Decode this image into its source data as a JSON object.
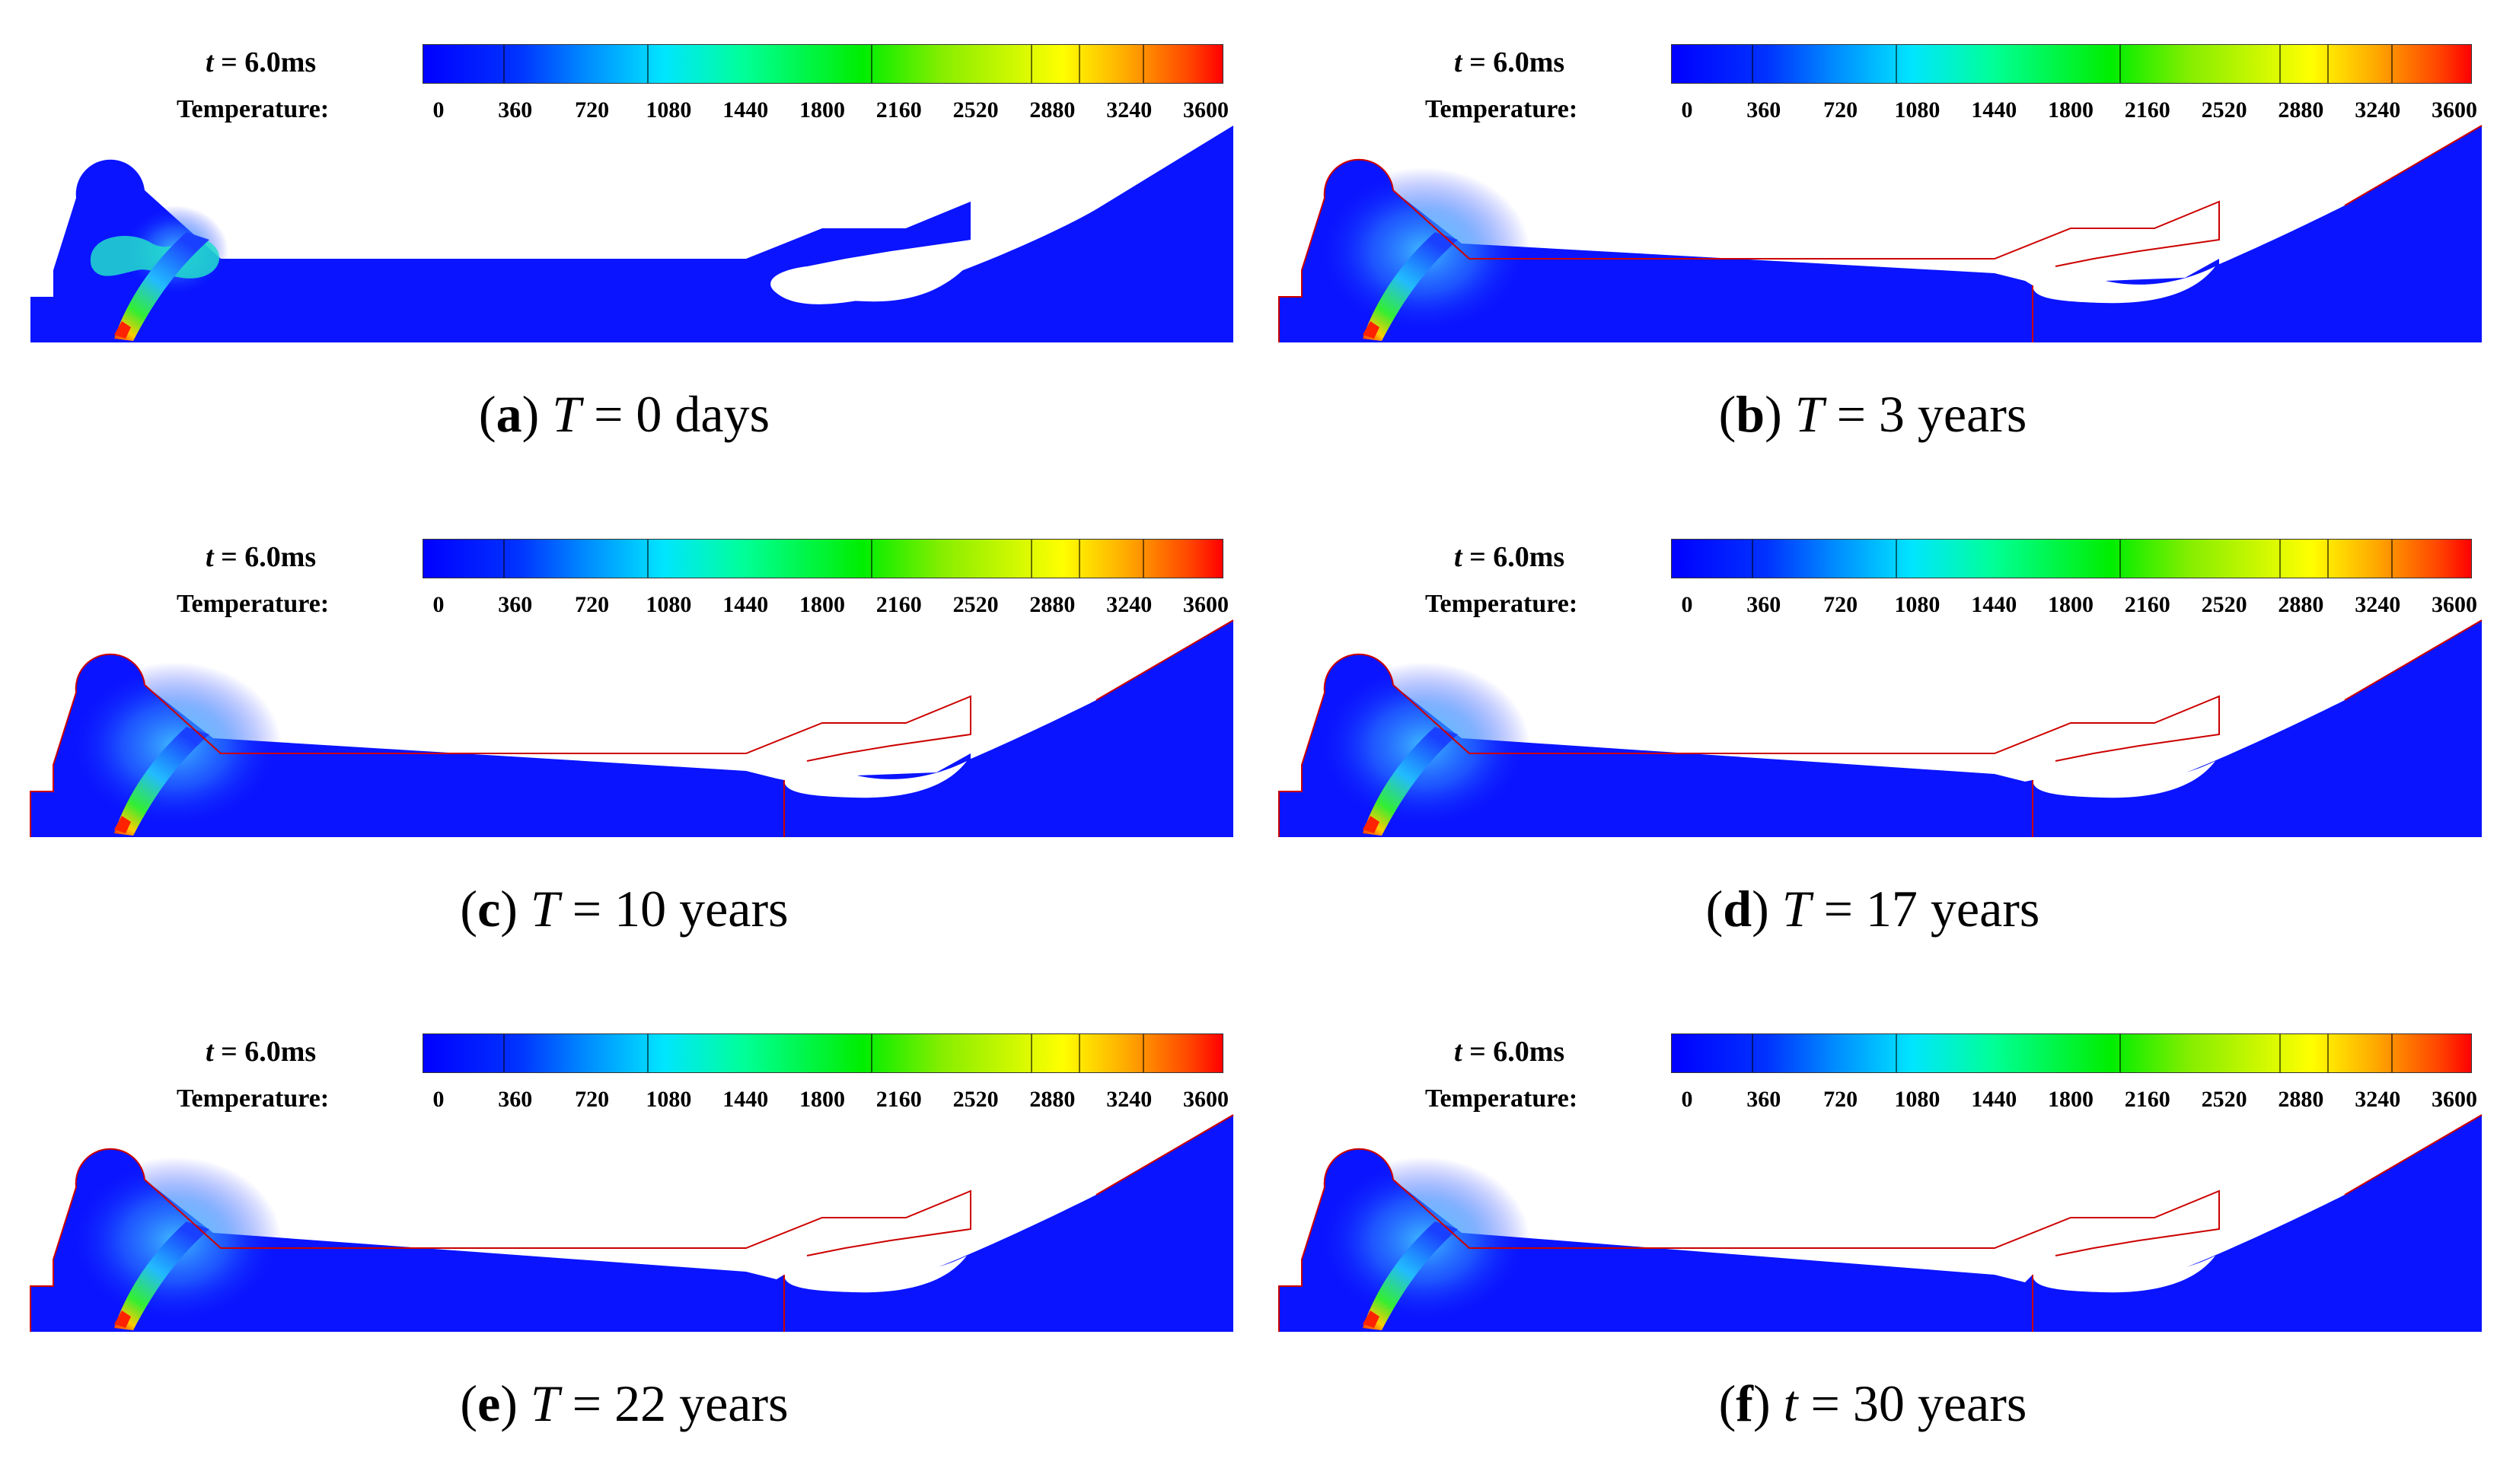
{
  "temperature_label": "Temperature:",
  "colorbar_ticks": [
    "0",
    "360",
    "720",
    "1080",
    "1440",
    "1800",
    "2160",
    "2520",
    "2880",
    "3240",
    "3600"
  ],
  "panels": [
    {
      "id": "a",
      "letter": "a",
      "time_var": "t",
      "time_value": "= 6.0ms",
      "cap_var": "T",
      "cap_rest": " = 0 days",
      "outline": false,
      "stage": 0
    },
    {
      "id": "b",
      "letter": "b",
      "time_var": "t",
      "time_value": "= 6.0ms",
      "cap_var": "T",
      "cap_rest": " = 3 years",
      "outline": true,
      "stage": 1
    },
    {
      "id": "c",
      "letter": "c",
      "time_var": "t",
      "time_value": "= 6.0ms",
      "cap_var": "T",
      "cap_rest": " = 10 years",
      "outline": true,
      "stage": 2
    },
    {
      "id": "d",
      "letter": "d",
      "time_var": "t",
      "time_value": "= 6.0ms",
      "cap_var": "T",
      "cap_rest": " = 17 years",
      "outline": true,
      "stage": 3
    },
    {
      "id": "e",
      "letter": "e",
      "time_var": "t",
      "time_value": "= 6.0ms",
      "cap_var": "T",
      "cap_rest": " = 22 years",
      "outline": true,
      "stage": 4
    },
    {
      "id": "f",
      "letter": "f",
      "time_var": "t",
      "time_value": "= 6.0ms",
      "cap_var": "t",
      "cap_rest": " = 30 years",
      "outline": true,
      "stage": 5
    }
  ],
  "colors": {
    "field": "#0a14ff",
    "outline": "#cc0000",
    "hot": "#ff2200"
  }
}
